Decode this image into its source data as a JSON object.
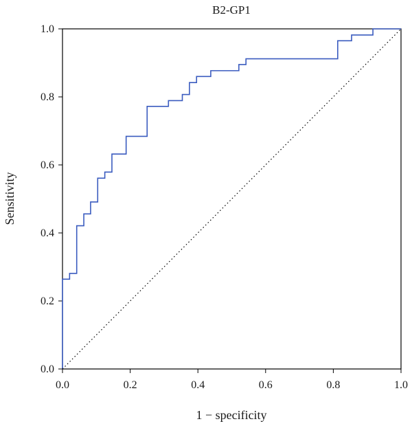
{
  "chart_data": {
    "type": "line",
    "title": "B2-GP1",
    "xlabel": "1 − specificity",
    "ylabel": "Sensitivity",
    "xlim": [
      0,
      1
    ],
    "ylim": [
      0,
      1
    ],
    "x_ticks": [
      "0.0",
      "0.2",
      "0.4",
      "0.6",
      "0.8",
      "1.0"
    ],
    "y_ticks": [
      "0.0",
      "0.2",
      "0.4",
      "0.6",
      "0.8",
      "1.0"
    ],
    "grid": false,
    "legend": "none",
    "series": [
      {
        "color": "#3a5bbf",
        "style": "solid",
        "points": [
          [
            0,
            0
          ],
          [
            0,
            0.264
          ],
          [
            0.021,
            0.264
          ],
          [
            0.021,
            0.281
          ],
          [
            0.042,
            0.281
          ],
          [
            0.042,
            0.421
          ],
          [
            0.063,
            0.421
          ],
          [
            0.063,
            0.456
          ],
          [
            0.083,
            0.456
          ],
          [
            0.083,
            0.491
          ],
          [
            0.104,
            0.491
          ],
          [
            0.104,
            0.561
          ],
          [
            0.125,
            0.561
          ],
          [
            0.125,
            0.579
          ],
          [
            0.146,
            0.579
          ],
          [
            0.146,
            0.632
          ],
          [
            0.188,
            0.632
          ],
          [
            0.188,
            0.684
          ],
          [
            0.25,
            0.684
          ],
          [
            0.25,
            0.772
          ],
          [
            0.313,
            0.772
          ],
          [
            0.313,
            0.789
          ],
          [
            0.354,
            0.789
          ],
          [
            0.354,
            0.807
          ],
          [
            0.375,
            0.807
          ],
          [
            0.375,
            0.842
          ],
          [
            0.396,
            0.842
          ],
          [
            0.396,
            0.86
          ],
          [
            0.438,
            0.86
          ],
          [
            0.438,
            0.877
          ],
          [
            0.521,
            0.877
          ],
          [
            0.521,
            0.895
          ],
          [
            0.542,
            0.895
          ],
          [
            0.542,
            0.912
          ],
          [
            0.813,
            0.912
          ],
          [
            0.813,
            0.965
          ],
          [
            0.854,
            0.965
          ],
          [
            0.854,
            0.982
          ],
          [
            0.917,
            0.982
          ],
          [
            0.917,
            1.0
          ],
          [
            1.0,
            1.0
          ]
        ]
      },
      {
        "color": "#000000",
        "style": "dotted",
        "points": [
          [
            0,
            0
          ],
          [
            1,
            1
          ]
        ]
      }
    ]
  }
}
